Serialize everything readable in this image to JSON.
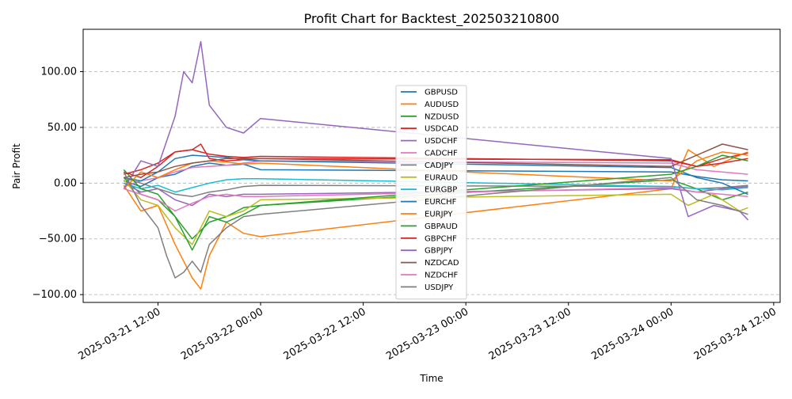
{
  "chart_data": {
    "type": "line",
    "title": "Profit Chart for Backtest_202503210800",
    "xlabel": "Time",
    "ylabel": "Pair Profit",
    "x_is_datetime": true,
    "xlim": [
      "2025-03-21 03:15",
      "2025-03-24 12:45"
    ],
    "ylim": [
      -107,
      138
    ],
    "yticks": [
      -100,
      -50,
      0,
      50,
      100
    ],
    "ytick_labels": [
      "−100.00",
      "−50.00",
      "0.00",
      "50.00",
      "100.00"
    ],
    "xticks": [
      "2025-03-21 12:00",
      "2025-03-22 00:00",
      "2025-03-22 12:00",
      "2025-03-23 00:00",
      "2025-03-23 12:00",
      "2025-03-24 00:00",
      "2025-03-24 12:00"
    ],
    "xtick_labels": [
      "2025-03-21 12:00",
      "2025-03-22 00:00",
      "2025-03-22 12:00",
      "2025-03-23 00:00",
      "2025-03-23 12:00",
      "2025-03-24 00:00",
      "2025-03-24 12:00"
    ],
    "grid": "y-dashed",
    "legend_position": "center",
    "series": [
      {
        "name": "GBPUSD",
        "color": "#1f77b4",
        "points": [
          [
            "2025-03-21 08:00",
            2
          ],
          [
            "2025-03-21 10:00",
            -3
          ],
          [
            "2025-03-21 12:00",
            5
          ],
          [
            "2025-03-21 14:00",
            8
          ],
          [
            "2025-03-21 16:00",
            15
          ],
          [
            "2025-03-21 18:00",
            18
          ],
          [
            "2025-03-21 20:00",
            16
          ],
          [
            "2025-03-21 22:00",
            17
          ],
          [
            "2025-03-22 00:00",
            12
          ],
          [
            "2025-03-24 00:00",
            10
          ],
          [
            "2025-03-24 03:00",
            6
          ],
          [
            "2025-03-24 06:00",
            3
          ],
          [
            "2025-03-24 09:00",
            2
          ]
        ]
      },
      {
        "name": "AUDUSD",
        "color": "#ff7f0e",
        "points": [
          [
            "2025-03-21 08:00",
            -2
          ],
          [
            "2025-03-21 10:00",
            -25
          ],
          [
            "2025-03-21 12:00",
            -20
          ],
          [
            "2025-03-21 14:00",
            -55
          ],
          [
            "2025-03-21 16:00",
            -85
          ],
          [
            "2025-03-21 17:00",
            -95
          ],
          [
            "2025-03-21 18:00",
            -65
          ],
          [
            "2025-03-21 20:00",
            -35
          ],
          [
            "2025-03-21 22:00",
            -45
          ],
          [
            "2025-03-22 00:00",
            -48
          ],
          [
            "2025-03-24 00:00",
            -5
          ],
          [
            "2025-03-24 02:00",
            30
          ],
          [
            "2025-03-24 05:00",
            15
          ],
          [
            "2025-03-24 08:00",
            25
          ],
          [
            "2025-03-24 09:00",
            28
          ]
        ]
      },
      {
        "name": "NZDUSD",
        "color": "#2ca02c",
        "points": [
          [
            "2025-03-21 08:00",
            5
          ],
          [
            "2025-03-21 10:00",
            -10
          ],
          [
            "2025-03-21 12:00",
            -15
          ],
          [
            "2025-03-21 14:00",
            -30
          ],
          [
            "2025-03-21 16:00",
            -50
          ],
          [
            "2025-03-21 18:00",
            -35
          ],
          [
            "2025-03-21 20:00",
            -30
          ],
          [
            "2025-03-21 22:00",
            -22
          ],
          [
            "2025-03-22 00:00",
            -20
          ],
          [
            "2025-03-24 00:00",
            3
          ],
          [
            "2025-03-24 03:00",
            -5
          ],
          [
            "2025-03-24 06:00",
            -15
          ],
          [
            "2025-03-24 09:00",
            -8
          ]
        ]
      },
      {
        "name": "USDCAD",
        "color": "#d62728",
        "points": [
          [
            "2025-03-21 08:00",
            10
          ],
          [
            "2025-03-21 10:00",
            5
          ],
          [
            "2025-03-21 12:00",
            15
          ],
          [
            "2025-03-21 14:00",
            28
          ],
          [
            "2025-03-21 16:00",
            30
          ],
          [
            "2025-03-21 17:00",
            35
          ],
          [
            "2025-03-21 18:00",
            22
          ],
          [
            "2025-03-21 20:00",
            20
          ],
          [
            "2025-03-21 22:00",
            21
          ],
          [
            "2025-03-22 00:00",
            22
          ],
          [
            "2025-03-24 00:00",
            21
          ],
          [
            "2025-03-24 03:00",
            15
          ],
          [
            "2025-03-24 06:00",
            22
          ],
          [
            "2025-03-24 09:00",
            27
          ]
        ]
      },
      {
        "name": "USDCHF",
        "color": "#9467bd",
        "points": [
          [
            "2025-03-21 08:00",
            0
          ],
          [
            "2025-03-21 10:00",
            -8
          ],
          [
            "2025-03-21 12:00",
            -5
          ],
          [
            "2025-03-21 14:00",
            -15
          ],
          [
            "2025-03-21 16:00",
            -20
          ],
          [
            "2025-03-21 18:00",
            -10
          ],
          [
            "2025-03-21 20:00",
            -12
          ],
          [
            "2025-03-21 22:00",
            -10
          ],
          [
            "2025-03-22 00:00",
            -10
          ],
          [
            "2025-03-24 00:00",
            -5
          ],
          [
            "2025-03-24 03:00",
            -8
          ],
          [
            "2025-03-24 06:00",
            -5
          ],
          [
            "2025-03-24 09:00",
            -3
          ]
        ]
      },
      {
        "name": "CADCHF",
        "color": "#e377c2",
        "points": [
          [
            "2025-03-21 08:00",
            -3
          ],
          [
            "2025-03-21 10:00",
            2
          ],
          [
            "2025-03-21 12:00",
            5
          ],
          [
            "2025-03-21 14:00",
            10
          ],
          [
            "2025-03-21 16:00",
            14
          ],
          [
            "2025-03-21 18:00",
            15
          ],
          [
            "2025-03-21 20:00",
            16
          ],
          [
            "2025-03-21 22:00",
            18
          ],
          [
            "2025-03-22 00:00",
            20
          ],
          [
            "2025-03-24 00:00",
            18
          ],
          [
            "2025-03-24 03:00",
            12
          ],
          [
            "2025-03-24 06:00",
            10
          ],
          [
            "2025-03-24 09:00",
            8
          ]
        ]
      },
      {
        "name": "CADJPY",
        "color": "#7f7f7f",
        "points": [
          [
            "2025-03-21 08:00",
            5
          ],
          [
            "2025-03-21 10:00",
            0
          ],
          [
            "2025-03-21 12:00",
            -5
          ],
          [
            "2025-03-21 14:00",
            -10
          ],
          [
            "2025-03-21 16:00",
            -12
          ],
          [
            "2025-03-21 18:00",
            -8
          ],
          [
            "2025-03-21 20:00",
            -6
          ],
          [
            "2025-03-21 22:00",
            -3
          ],
          [
            "2025-03-22 00:00",
            -2
          ],
          [
            "2025-03-24 00:00",
            -3
          ],
          [
            "2025-03-24 03:00",
            -5
          ],
          [
            "2025-03-24 06:00",
            -4
          ],
          [
            "2025-03-24 09:00",
            -2
          ]
        ]
      },
      {
        "name": "EURAUD",
        "color": "#bcbd22",
        "points": [
          [
            "2025-03-21 08:00",
            3
          ],
          [
            "2025-03-21 10:00",
            -15
          ],
          [
            "2025-03-21 12:00",
            -20
          ],
          [
            "2025-03-21 14:00",
            -40
          ],
          [
            "2025-03-21 16:00",
            -55
          ],
          [
            "2025-03-21 18:00",
            -25
          ],
          [
            "2025-03-21 20:00",
            -30
          ],
          [
            "2025-03-21 22:00",
            -25
          ],
          [
            "2025-03-22 00:00",
            -15
          ],
          [
            "2025-03-24 00:00",
            -10
          ],
          [
            "2025-03-24 02:00",
            -20
          ],
          [
            "2025-03-24 05:00",
            -10
          ],
          [
            "2025-03-24 08:00",
            -25
          ],
          [
            "2025-03-24 09:00",
            -22
          ]
        ]
      },
      {
        "name": "EURGBP",
        "color": "#17becf",
        "points": [
          [
            "2025-03-21 08:00",
            0
          ],
          [
            "2025-03-21 10:00",
            -5
          ],
          [
            "2025-03-21 12:00",
            -2
          ],
          [
            "2025-03-21 14:00",
            -8
          ],
          [
            "2025-03-21 16:00",
            -4
          ],
          [
            "2025-03-21 18:00",
            0
          ],
          [
            "2025-03-21 20:00",
            3
          ],
          [
            "2025-03-21 22:00",
            4
          ],
          [
            "2025-03-22 00:00",
            4
          ],
          [
            "2025-03-24 00:00",
            -3
          ],
          [
            "2025-03-24 03:00",
            -5
          ],
          [
            "2025-03-24 06:00",
            -6
          ],
          [
            "2025-03-24 09:00",
            -4
          ]
        ]
      },
      {
        "name": "EURCHF",
        "color": "#1f77b4",
        "points": [
          [
            "2025-03-21 08:00",
            5
          ],
          [
            "2025-03-21 10:00",
            2
          ],
          [
            "2025-03-21 12:00",
            10
          ],
          [
            "2025-03-21 14:00",
            22
          ],
          [
            "2025-03-21 16:00",
            25
          ],
          [
            "2025-03-21 18:00",
            24
          ],
          [
            "2025-03-21 20:00",
            23
          ],
          [
            "2025-03-21 22:00",
            21
          ],
          [
            "2025-03-22 00:00",
            20
          ],
          [
            "2025-03-24 00:00",
            14
          ],
          [
            "2025-03-24 03:00",
            5
          ],
          [
            "2025-03-24 06:00",
            0
          ],
          [
            "2025-03-24 09:00",
            -10
          ]
        ]
      },
      {
        "name": "EURJPY",
        "color": "#ff7f0e",
        "points": [
          [
            "2025-03-21 08:00",
            -5
          ],
          [
            "2025-03-21 10:00",
            10
          ],
          [
            "2025-03-21 12:00",
            5
          ],
          [
            "2025-03-21 14:00",
            12
          ],
          [
            "2025-03-21 16:00",
            18
          ],
          [
            "2025-03-21 18:00",
            20
          ],
          [
            "2025-03-21 20:00",
            19
          ],
          [
            "2025-03-21 22:00",
            17
          ],
          [
            "2025-03-22 00:00",
            18
          ],
          [
            "2025-03-24 00:00",
            2
          ],
          [
            "2025-03-24 03:00",
            20
          ],
          [
            "2025-03-24 06:00",
            28
          ],
          [
            "2025-03-24 09:00",
            25
          ]
        ]
      },
      {
        "name": "GBPAUD",
        "color": "#2ca02c",
        "points": [
          [
            "2025-03-21 08:00",
            12
          ],
          [
            "2025-03-21 10:00",
            -5
          ],
          [
            "2025-03-21 12:00",
            -10
          ],
          [
            "2025-03-21 14:00",
            -30
          ],
          [
            "2025-03-21 16:00",
            -60
          ],
          [
            "2025-03-21 18:00",
            -30
          ],
          [
            "2025-03-21 20:00",
            -35
          ],
          [
            "2025-03-21 22:00",
            -28
          ],
          [
            "2025-03-22 00:00",
            -20
          ],
          [
            "2025-03-24 00:00",
            8
          ],
          [
            "2025-03-24 03:00",
            15
          ],
          [
            "2025-03-24 06:00",
            25
          ],
          [
            "2025-03-24 09:00",
            20
          ]
        ]
      },
      {
        "name": "GBPCHF",
        "color": "#d62728",
        "points": [
          [
            "2025-03-21 08:00",
            8
          ],
          [
            "2025-03-21 10:00",
            12
          ],
          [
            "2025-03-21 12:00",
            18
          ],
          [
            "2025-03-21 14:00",
            28
          ],
          [
            "2025-03-21 16:00",
            30
          ],
          [
            "2025-03-21 18:00",
            26
          ],
          [
            "2025-03-21 20:00",
            24
          ],
          [
            "2025-03-21 22:00",
            23
          ],
          [
            "2025-03-22 00:00",
            24
          ],
          [
            "2025-03-24 00:00",
            20
          ],
          [
            "2025-03-24 03:00",
            15
          ],
          [
            "2025-03-24 06:00",
            18
          ],
          [
            "2025-03-24 09:00",
            22
          ]
        ]
      },
      {
        "name": "GBPJPY",
        "color": "#9467bd",
        "points": [
          [
            "2025-03-21 08:00",
            -5
          ],
          [
            "2025-03-21 10:00",
            20
          ],
          [
            "2025-03-21 12:00",
            15
          ],
          [
            "2025-03-21 14:00",
            60
          ],
          [
            "2025-03-21 15:00",
            100
          ],
          [
            "2025-03-21 16:00",
            90
          ],
          [
            "2025-03-21 17:00",
            127
          ],
          [
            "2025-03-21 18:00",
            70
          ],
          [
            "2025-03-21 20:00",
            50
          ],
          [
            "2025-03-21 22:00",
            45
          ],
          [
            "2025-03-22 00:00",
            58
          ],
          [
            "2025-03-24 00:00",
            22
          ],
          [
            "2025-03-24 02:00",
            -30
          ],
          [
            "2025-03-24 05:00",
            -20
          ],
          [
            "2025-03-24 08:00",
            -25
          ],
          [
            "2025-03-24 09:00",
            -33
          ]
        ]
      },
      {
        "name": "NZDCAD",
        "color": "#8c564b",
        "points": [
          [
            "2025-03-21 08:00",
            5
          ],
          [
            "2025-03-21 10:00",
            8
          ],
          [
            "2025-03-21 12:00",
            10
          ],
          [
            "2025-03-21 14:00",
            15
          ],
          [
            "2025-03-21 16:00",
            18
          ],
          [
            "2025-03-21 18:00",
            20
          ],
          [
            "2025-03-21 20:00",
            22
          ],
          [
            "2025-03-21 22:00",
            22
          ],
          [
            "2025-03-22 00:00",
            22
          ],
          [
            "2025-03-24 00:00",
            15
          ],
          [
            "2025-03-24 03:00",
            25
          ],
          [
            "2025-03-24 06:00",
            35
          ],
          [
            "2025-03-24 09:00",
            30
          ]
        ]
      },
      {
        "name": "NZDCHF",
        "color": "#e377c2",
        "points": [
          [
            "2025-03-21 08:00",
            -5
          ],
          [
            "2025-03-21 10:00",
            -10
          ],
          [
            "2025-03-21 12:00",
            -15
          ],
          [
            "2025-03-21 14:00",
            -25
          ],
          [
            "2025-03-21 16:00",
            -18
          ],
          [
            "2025-03-21 18:00",
            -12
          ],
          [
            "2025-03-21 20:00",
            -10
          ],
          [
            "2025-03-21 22:00",
            -12
          ],
          [
            "2025-03-22 00:00",
            -12
          ],
          [
            "2025-03-24 00:00",
            -4
          ],
          [
            "2025-03-24 03:00",
            -8
          ],
          [
            "2025-03-24 06:00",
            -10
          ],
          [
            "2025-03-24 09:00",
            -12
          ]
        ]
      },
      {
        "name": "USDJPY",
        "color": "#7f7f7f",
        "points": [
          [
            "2025-03-21 08:00",
            10
          ],
          [
            "2025-03-21 10:00",
            -20
          ],
          [
            "2025-03-21 12:00",
            -40
          ],
          [
            "2025-03-21 13:00",
            -65
          ],
          [
            "2025-03-21 14:00",
            -85
          ],
          [
            "2025-03-21 15:00",
            -80
          ],
          [
            "2025-03-21 16:00",
            -70
          ],
          [
            "2025-03-21 17:00",
            -80
          ],
          [
            "2025-03-21 18:00",
            -55
          ],
          [
            "2025-03-21 20:00",
            -40
          ],
          [
            "2025-03-21 22:00",
            -30
          ],
          [
            "2025-03-22 00:00",
            -28
          ],
          [
            "2025-03-24 00:00",
            5
          ],
          [
            "2025-03-24 03:00",
            -15
          ],
          [
            "2025-03-24 06:00",
            -20
          ],
          [
            "2025-03-24 09:00",
            -28
          ]
        ]
      }
    ]
  }
}
